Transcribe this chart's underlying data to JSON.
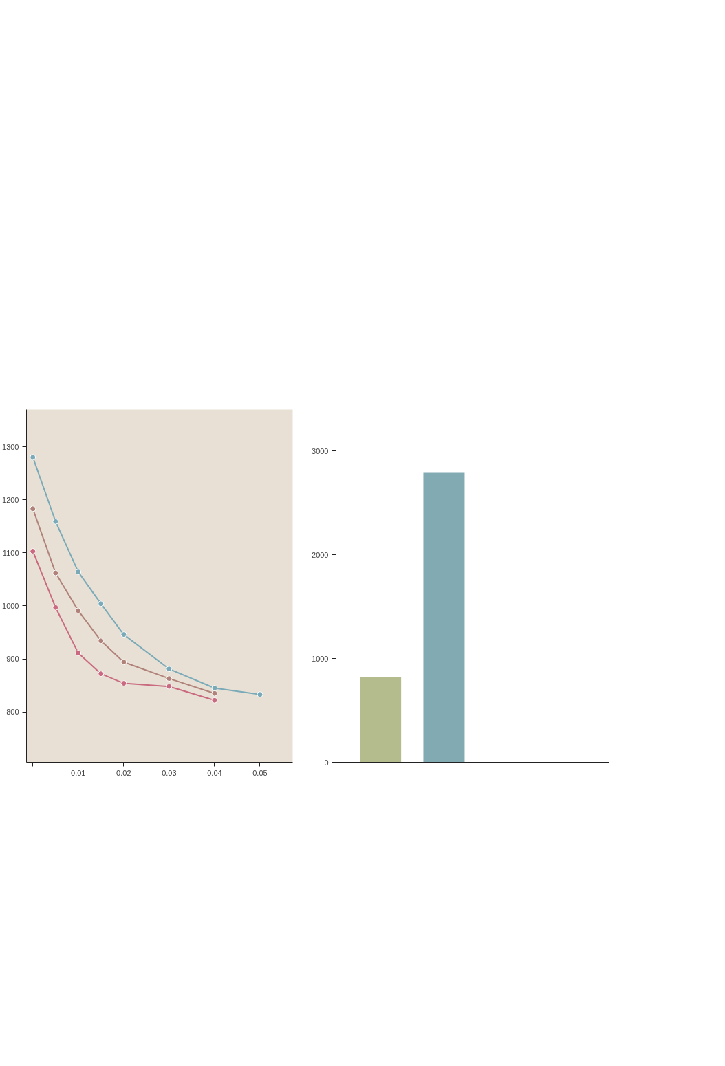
{
  "chart_data": [
    {
      "type": "line",
      "x": [
        0,
        0.005,
        0.01,
        0.015,
        0.02,
        0.03,
        0.04,
        0.05
      ],
      "series": [
        {
          "color": "#c96a80",
          "values": [
            1103,
            997,
            911,
            872,
            854,
            848,
            822,
            null
          ]
        },
        {
          "color": "#b0827a",
          "values": [
            1183,
            1062,
            991,
            934,
            894,
            863,
            835,
            null
          ]
        },
        {
          "color": "#7aaab8",
          "values": [
            1280,
            1159,
            1064,
            1004,
            946,
            881,
            845,
            833
          ]
        }
      ],
      "xlim": [
        -0.0014,
        0.0572
      ],
      "ylim": [
        705,
        1370
      ],
      "xticks": [
        {
          "value": 0,
          "label": null
        },
        0.01,
        0.02,
        0.03,
        0.04,
        0.05
      ],
      "yticks": [
        800,
        900,
        1000,
        1100,
        1200,
        1300
      ],
      "marker": "circle"
    },
    {
      "type": "bar",
      "categories": [
        null,
        null
      ],
      "values": [
        820,
        2790
      ],
      "colors": [
        "#b4bb8c",
        "#82aab3"
      ],
      "ylim": [
        0,
        3400
      ],
      "yticks": [
        0,
        1000,
        2000,
        3000
      ]
    }
  ]
}
